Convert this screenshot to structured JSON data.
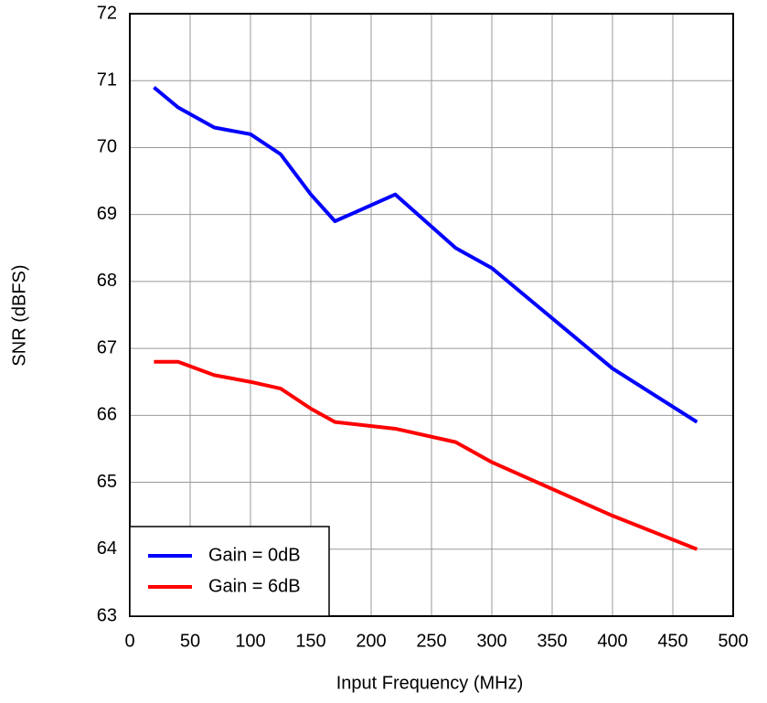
{
  "chart_data": {
    "type": "line",
    "x_label": "Input Frequency (MHz)",
    "y_label": "SNR (dBFS)",
    "x": [
      20,
      40,
      70,
      100,
      125,
      150,
      170,
      220,
      270,
      300,
      400,
      470
    ],
    "series": [
      {
        "name": "Gain = 0dB",
        "color": "#0000ff",
        "values": [
          70.9,
          70.6,
          70.3,
          70.2,
          69.9,
          69.3,
          68.9,
          69.3,
          68.5,
          68.2,
          66.7,
          65.9
        ]
      },
      {
        "name": "Gain = 6dB",
        "color": "#ff0000",
        "values": [
          66.8,
          66.8,
          66.6,
          66.5,
          66.4,
          66.1,
          65.9,
          65.8,
          65.6,
          65.3,
          64.5,
          64.0
        ]
      }
    ],
    "xlim": [
      0,
      500
    ],
    "xticks": [
      0,
      50,
      100,
      150,
      200,
      250,
      300,
      350,
      400,
      450,
      500
    ],
    "ylim": [
      63,
      72
    ],
    "yticks": [
      63,
      64,
      65,
      66,
      67,
      68,
      69,
      70,
      71,
      72
    ],
    "grid": true,
    "legend": "lower-left"
  }
}
